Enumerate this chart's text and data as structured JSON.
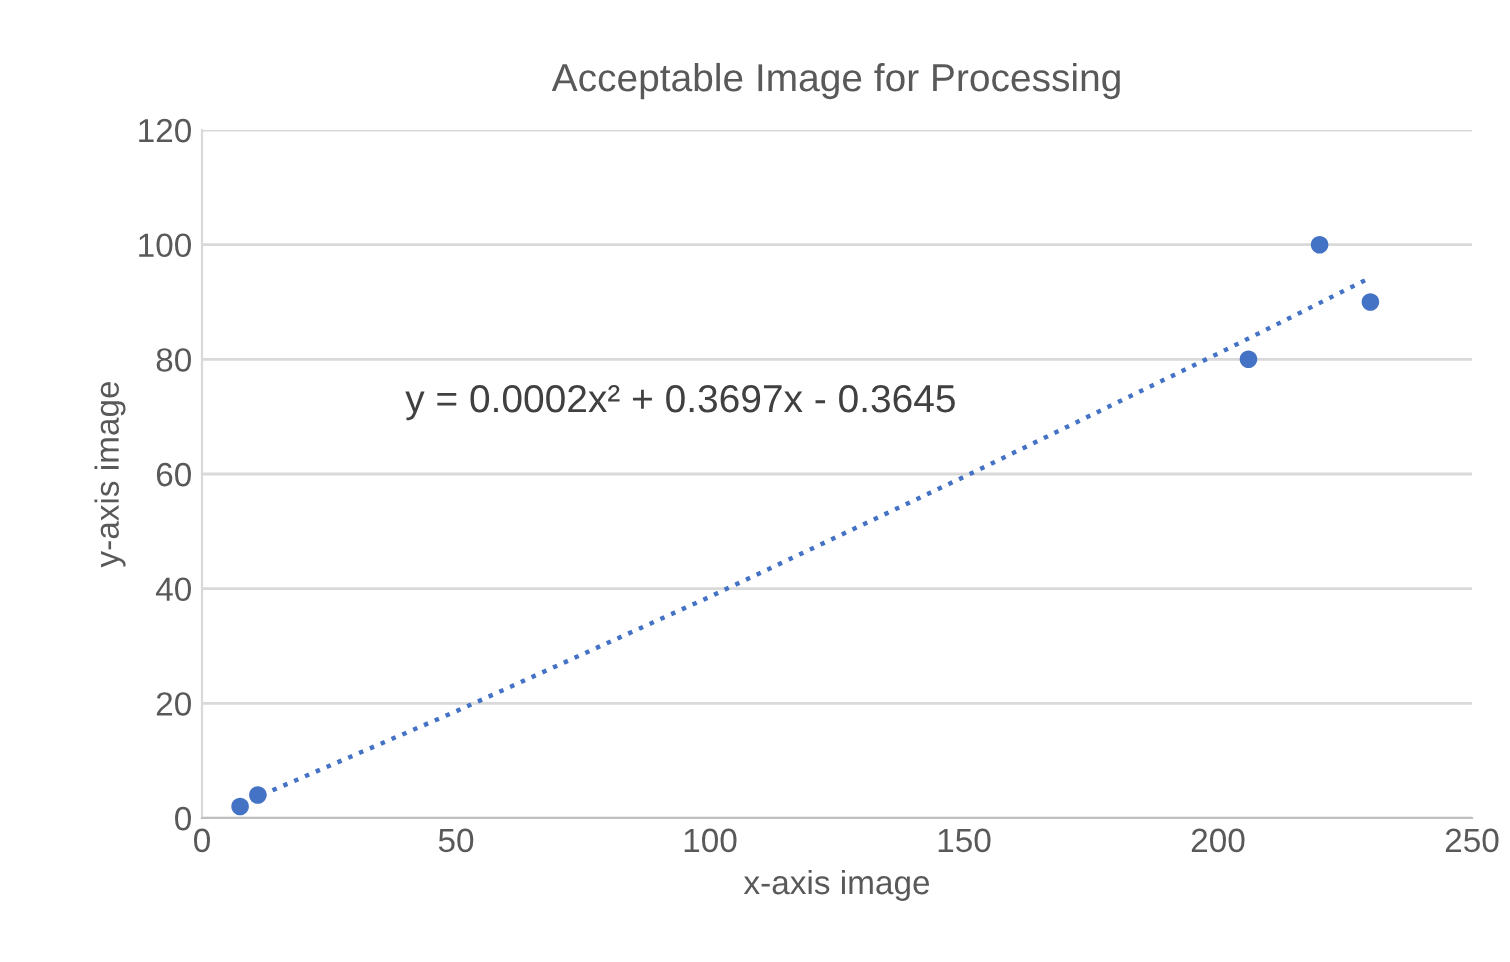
{
  "chart_data": {
    "type": "scatter",
    "title": "Acceptable Image for Processing",
    "xlabel": "x-axis image",
    "ylabel": "y-axis image",
    "series": [
      {
        "color": "#4472c4",
        "x": [
          7.5,
          11,
          206,
          220,
          230
        ],
        "values": [
          2,
          4,
          80,
          100,
          90
        ],
        "marker": "circle"
      },
      {
        "type": "line",
        "color": "#4472c4",
        "line_style": "dotted",
        "x": [
          7.5,
          50,
          100,
          150,
          200,
          229
        ],
        "values": [
          2.4,
          18.6,
          38.6,
          59.5,
          81,
          93.8
        ]
      }
    ],
    "annotations": [
      "y = 0.0002x² + 0.3697x - 0.3645"
    ],
    "xlim": [
      0,
      250
    ],
    "xticks": [
      0,
      50,
      100,
      150,
      200,
      250
    ],
    "ylim": [
      0,
      120
    ],
    "yticks": [
      0,
      20,
      40,
      60,
      80,
      100,
      120
    ],
    "grid": "y",
    "legend": false
  }
}
